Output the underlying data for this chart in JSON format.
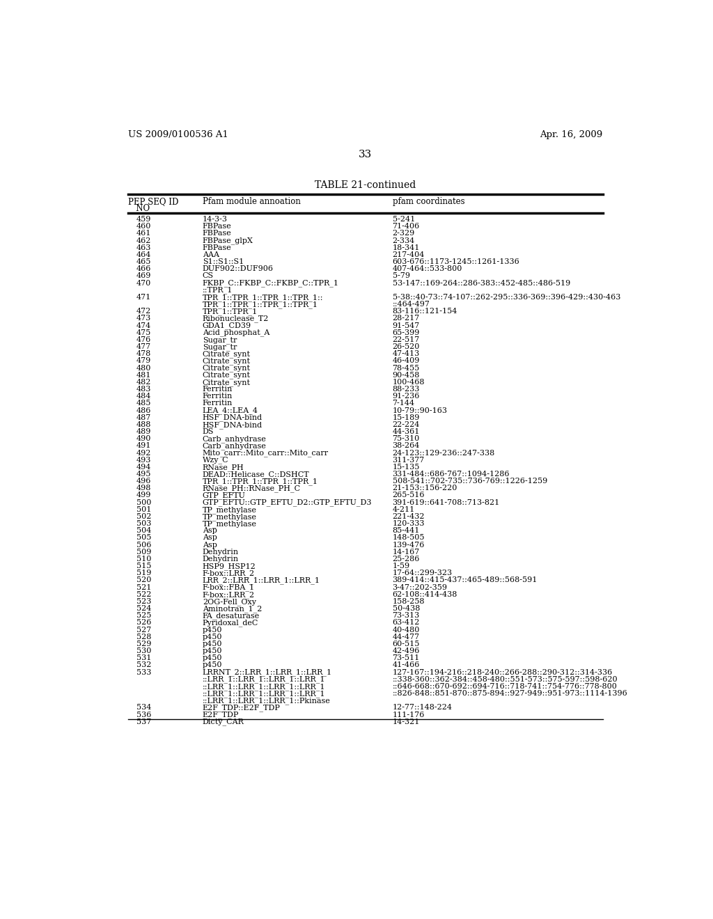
{
  "header_left": "US 2009/0100536 A1",
  "header_right": "Apr. 16, 2009",
  "page_number": "33",
  "table_title": "TABLE 21-continued",
  "col1_header_line1": "PEP SEQ ID",
  "col1_header_line2": "   NO",
  "col2_header": "Pfam module annoation",
  "col3_header": "pfam coordinates",
  "rows": [
    {
      "no": "459",
      "pfam": [
        "14-3-3"
      ],
      "coords": [
        "5-241"
      ]
    },
    {
      "no": "460",
      "pfam": [
        "FBPase"
      ],
      "coords": [
        "71-406"
      ]
    },
    {
      "no": "461",
      "pfam": [
        "FBPase"
      ],
      "coords": [
        "2-329"
      ]
    },
    {
      "no": "462",
      "pfam": [
        "FBPase_glpX"
      ],
      "coords": [
        "2-334"
      ]
    },
    {
      "no": "463",
      "pfam": [
        "FBPase"
      ],
      "coords": [
        "18-341"
      ]
    },
    {
      "no": "464",
      "pfam": [
        "AAA"
      ],
      "coords": [
        "217-404"
      ]
    },
    {
      "no": "465",
      "pfam": [
        "S1::S1::S1"
      ],
      "coords": [
        "603-676::1173-1245::1261-1336"
      ]
    },
    {
      "no": "466",
      "pfam": [
        "DUF902::DUF906"
      ],
      "coords": [
        "407-464::533-800"
      ]
    },
    {
      "no": "469",
      "pfam": [
        "CS"
      ],
      "coords": [
        "5-79"
      ]
    },
    {
      "no": "470",
      "pfam": [
        "FKBP_C::FKBP_C::FKBP_C::TPR_1",
        "::TPR_1"
      ],
      "coords": [
        "53-147::169-264::286-383::452-485::486-519",
        ""
      ]
    },
    {
      "no": "471",
      "pfam": [
        "TPR_1::TPR_1::TPR_1::TPR_1::",
        "TPR_1::TPR_1::TPR_1::TPR_1"
      ],
      "coords": [
        "5-38::40-73::74-107::262-295::336-369::396-429::430-463",
        "::464-497"
      ]
    },
    {
      "no": "472",
      "pfam": [
        "TPR_1::TPR_1"
      ],
      "coords": [
        "83-116::121-154"
      ]
    },
    {
      "no": "473",
      "pfam": [
        "Ribonuclease_T2"
      ],
      "coords": [
        "28-217"
      ]
    },
    {
      "no": "474",
      "pfam": [
        "GDA1_CD39"
      ],
      "coords": [
        "91-547"
      ]
    },
    {
      "no": "475",
      "pfam": [
        "Acid_phosphat_A"
      ],
      "coords": [
        "65-399"
      ]
    },
    {
      "no": "476",
      "pfam": [
        "Sugar_tr"
      ],
      "coords": [
        "22-517"
      ]
    },
    {
      "no": "477",
      "pfam": [
        "Sugar_tr"
      ],
      "coords": [
        "26-520"
      ]
    },
    {
      "no": "478",
      "pfam": [
        "Citrate_synt"
      ],
      "coords": [
        "47-413"
      ]
    },
    {
      "no": "479",
      "pfam": [
        "Citrate_synt"
      ],
      "coords": [
        "46-409"
      ]
    },
    {
      "no": "480",
      "pfam": [
        "Citrate_synt"
      ],
      "coords": [
        "78-455"
      ]
    },
    {
      "no": "481",
      "pfam": [
        "Citrate_synt"
      ],
      "coords": [
        "90-458"
      ]
    },
    {
      "no": "482",
      "pfam": [
        "Citrate_synt"
      ],
      "coords": [
        "100-468"
      ]
    },
    {
      "no": "483",
      "pfam": [
        "Ferritin"
      ],
      "coords": [
        "88-233"
      ]
    },
    {
      "no": "484",
      "pfam": [
        "Ferritin"
      ],
      "coords": [
        "91-236"
      ]
    },
    {
      "no": "485",
      "pfam": [
        "Ferritin"
      ],
      "coords": [
        "7-144"
      ]
    },
    {
      "no": "486",
      "pfam": [
        "LEA_4::LEA_4"
      ],
      "coords": [
        "10-79::90-163"
      ]
    },
    {
      "no": "487",
      "pfam": [
        "HSF_DNA-bind"
      ],
      "coords": [
        "15-189"
      ]
    },
    {
      "no": "488",
      "pfam": [
        "HSF_DNA-bind"
      ],
      "coords": [
        "22-224"
      ]
    },
    {
      "no": "489",
      "pfam": [
        "DS"
      ],
      "coords": [
        "44-361"
      ]
    },
    {
      "no": "490",
      "pfam": [
        "Carb_anhydrase"
      ],
      "coords": [
        "75-310"
      ]
    },
    {
      "no": "491",
      "pfam": [
        "Carb_anhydrase"
      ],
      "coords": [
        "38-264"
      ]
    },
    {
      "no": "492",
      "pfam": [
        "Mito_carr::Mito_carr::Mito_carr"
      ],
      "coords": [
        "24-123::129-236::247-338"
      ]
    },
    {
      "no": "493",
      "pfam": [
        "Wzy_C"
      ],
      "coords": [
        "311-377"
      ]
    },
    {
      "no": "494",
      "pfam": [
        "RNase_PH"
      ],
      "coords": [
        "15-135"
      ]
    },
    {
      "no": "495",
      "pfam": [
        "DEAD::Helicase_C::DSHCT"
      ],
      "coords": [
        "331-484::686-767::1094-1286"
      ]
    },
    {
      "no": "496",
      "pfam": [
        "TPR_1::TPR_1::TPR_1::TPR_1"
      ],
      "coords": [
        "508-541::702-735::736-769::1226-1259"
      ]
    },
    {
      "no": "498",
      "pfam": [
        "RNase_PH::RNase_PH_C"
      ],
      "coords": [
        "21-153::156-220"
      ]
    },
    {
      "no": "499",
      "pfam": [
        "GTP_EFTU"
      ],
      "coords": [
        "265-516"
      ]
    },
    {
      "no": "500",
      "pfam": [
        "GTP_EFTU::GTP_EFTU_D2::GTP_EFTU_D3"
      ],
      "coords": [
        "391-619::641-708::713-821"
      ]
    },
    {
      "no": "501",
      "pfam": [
        "TP_methylase"
      ],
      "coords": [
        "4-211"
      ]
    },
    {
      "no": "502",
      "pfam": [
        "TP_methylase"
      ],
      "coords": [
        "221-432"
      ]
    },
    {
      "no": "503",
      "pfam": [
        "TP_methylase"
      ],
      "coords": [
        "120-333"
      ]
    },
    {
      "no": "504",
      "pfam": [
        "Asp"
      ],
      "coords": [
        "85-441"
      ]
    },
    {
      "no": "505",
      "pfam": [
        "Asp"
      ],
      "coords": [
        "148-505"
      ]
    },
    {
      "no": "506",
      "pfam": [
        "Asp"
      ],
      "coords": [
        "139-476"
      ]
    },
    {
      "no": "509",
      "pfam": [
        "Dehydrin"
      ],
      "coords": [
        "14-167"
      ]
    },
    {
      "no": "510",
      "pfam": [
        "Dehydrin"
      ],
      "coords": [
        "25-286"
      ]
    },
    {
      "no": "515",
      "pfam": [
        "HSP9_HSP12"
      ],
      "coords": [
        "1-59"
      ]
    },
    {
      "no": "519",
      "pfam": [
        "F-box::LRR_2"
      ],
      "coords": [
        "17-64::299-323"
      ]
    },
    {
      "no": "520",
      "pfam": [
        "LRR_2::LRR_1::LRR_1::LRR_1"
      ],
      "coords": [
        "389-414::415-437::465-489::568-591"
      ]
    },
    {
      "no": "521",
      "pfam": [
        "F-box::FBA_1"
      ],
      "coords": [
        "3-47::202-359"
      ]
    },
    {
      "no": "522",
      "pfam": [
        "F-box::LRR_2"
      ],
      "coords": [
        "62-108::414-438"
      ]
    },
    {
      "no": "523",
      "pfam": [
        "2OG-Fell_Oxy"
      ],
      "coords": [
        "158-258"
      ]
    },
    {
      "no": "524",
      "pfam": [
        "Aminotran_1_2"
      ],
      "coords": [
        "50-438"
      ]
    },
    {
      "no": "525",
      "pfam": [
        "FA_desaturase"
      ],
      "coords": [
        "73-313"
      ]
    },
    {
      "no": "526",
      "pfam": [
        "Pyridoxal_deC"
      ],
      "coords": [
        "63-412"
      ]
    },
    {
      "no": "527",
      "pfam": [
        "p450"
      ],
      "coords": [
        "40-480"
      ]
    },
    {
      "no": "528",
      "pfam": [
        "p450"
      ],
      "coords": [
        "44-477"
      ]
    },
    {
      "no": "529",
      "pfam": [
        "p450"
      ],
      "coords": [
        "60-515"
      ]
    },
    {
      "no": "530",
      "pfam": [
        "p450"
      ],
      "coords": [
        "42-496"
      ]
    },
    {
      "no": "531",
      "pfam": [
        "p450"
      ],
      "coords": [
        "73-511"
      ]
    },
    {
      "no": "532",
      "pfam": [
        "p450"
      ],
      "coords": [
        "41-466"
      ]
    },
    {
      "no": "533",
      "pfam": [
        "LRRNT_2::LRR_1::LRR_1::LRR_1",
        "::LRR_1::LRR_1::LRR_1::LRR_1",
        "::LRR_1::LRR_1::LRR_1::LRR_1",
        "::LRR_1::LRR_1::LRR_1::LRR_1",
        "::LRR_1::LRR_1::LRR_1::Pkinase"
      ],
      "coords": [
        "127-167::194-216::218-240::266-288::290-312::314-336",
        "::338-360::362-384::458-480::551-573::575-597::598-620",
        "::646-668::670-692::694-716::718-741::754-776::778-800",
        "::826-848::851-870::875-894::927-949::951-973::1114-1396",
        ""
      ]
    },
    {
      "no": "534",
      "pfam": [
        "E2F_TDP::E2F_TDP"
      ],
      "coords": [
        "12-77::148-224"
      ]
    },
    {
      "no": "536",
      "pfam": [
        "E2F_TDP"
      ],
      "coords": [
        "111-176"
      ]
    },
    {
      "no": "537",
      "pfam": [
        "Dicty_CAR"
      ],
      "coords": [
        "14-321"
      ]
    }
  ]
}
